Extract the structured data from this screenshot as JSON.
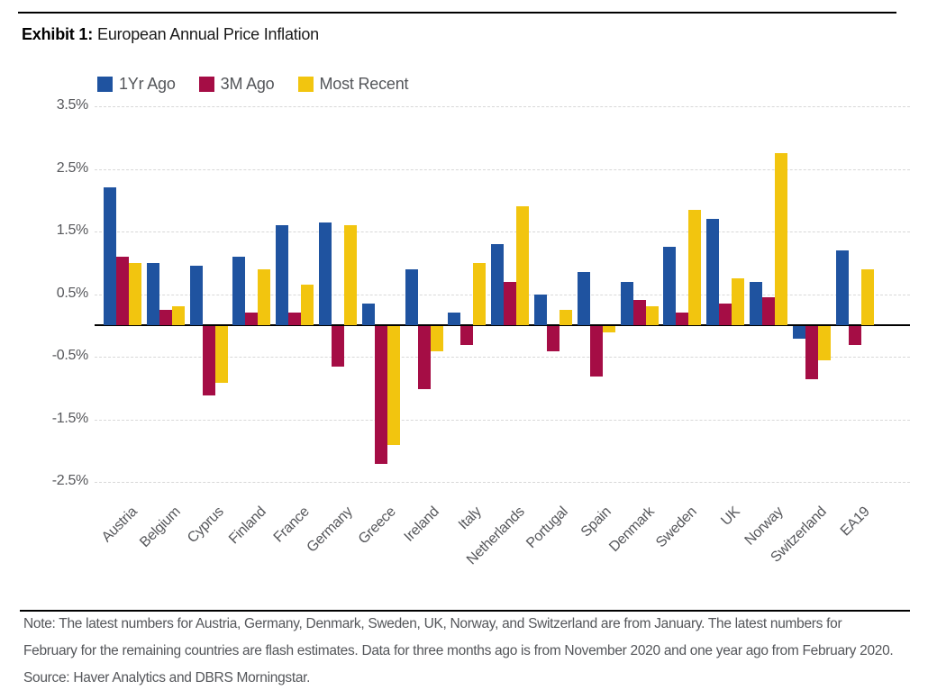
{
  "header": {
    "exhibit_label": "Exhibit 1:",
    "title": "European Annual Price Inflation"
  },
  "chart_data": {
    "type": "bar",
    "title": "European Annual Price Inflation",
    "categories": [
      "Austria",
      "Belgium",
      "Cyprus",
      "Finland",
      "France",
      "Germany",
      "Greece",
      "Ireland",
      "Italy",
      "Netherlands",
      "Portugal",
      "Spain",
      "Denmark",
      "Sweden",
      "UK",
      "Norway",
      "Switzerland",
      "EA19"
    ],
    "series": [
      {
        "name": "1Yr Ago",
        "color": "#1f53a0",
        "values": [
          2.2,
          1.0,
          0.95,
          1.1,
          1.6,
          1.65,
          0.35,
          0.9,
          0.2,
          1.3,
          0.5,
          0.85,
          0.7,
          1.25,
          1.7,
          0.7,
          -0.2,
          1.2
        ]
      },
      {
        "name": "3M Ago",
        "color": "#a50d45",
        "values": [
          1.1,
          0.25,
          -1.1,
          0.2,
          0.2,
          -0.65,
          -2.2,
          -1.0,
          -0.3,
          0.7,
          -0.4,
          -0.8,
          0.4,
          0.2,
          0.35,
          0.45,
          -0.85,
          -0.3
        ]
      },
      {
        "name": "Most Recent",
        "color": "#f2c50f",
        "values": [
          1.0,
          0.3,
          -0.9,
          0.9,
          0.65,
          1.6,
          -1.9,
          -0.4,
          1.0,
          1.9,
          0.25,
          -0.1,
          0.3,
          1.85,
          0.75,
          2.75,
          -0.55,
          0.9
        ]
      }
    ],
    "y_ticks": [
      "3.5%",
      "2.5%",
      "1.5%",
      "0.5%",
      "-0.5%",
      "-1.5%",
      "-2.5%"
    ],
    "ylim": [
      -2.5,
      3.5
    ],
    "y_unit": "%",
    "grid": "horizontal-dashed",
    "zero_line": true,
    "legend_position": "top-left"
  },
  "footer": {
    "note_line1": "Note: The latest numbers for Austria, Germany, Denmark, Sweden, UK, Norway, and Switzerland are from January. The latest numbers for",
    "note_line2": "February for the remaining countries are flash estimates. Data for three months ago is from November 2020 and one year ago from February 2020.",
    "source": "Source: Haver Analytics and DBRS Morningstar."
  },
  "colors": {
    "series_blue": "#1f53a0",
    "series_red": "#a50d45",
    "series_yellow": "#f2c50f",
    "text_gray": "#54565a",
    "gridline": "#d8d8d8",
    "axis": "#000000"
  }
}
